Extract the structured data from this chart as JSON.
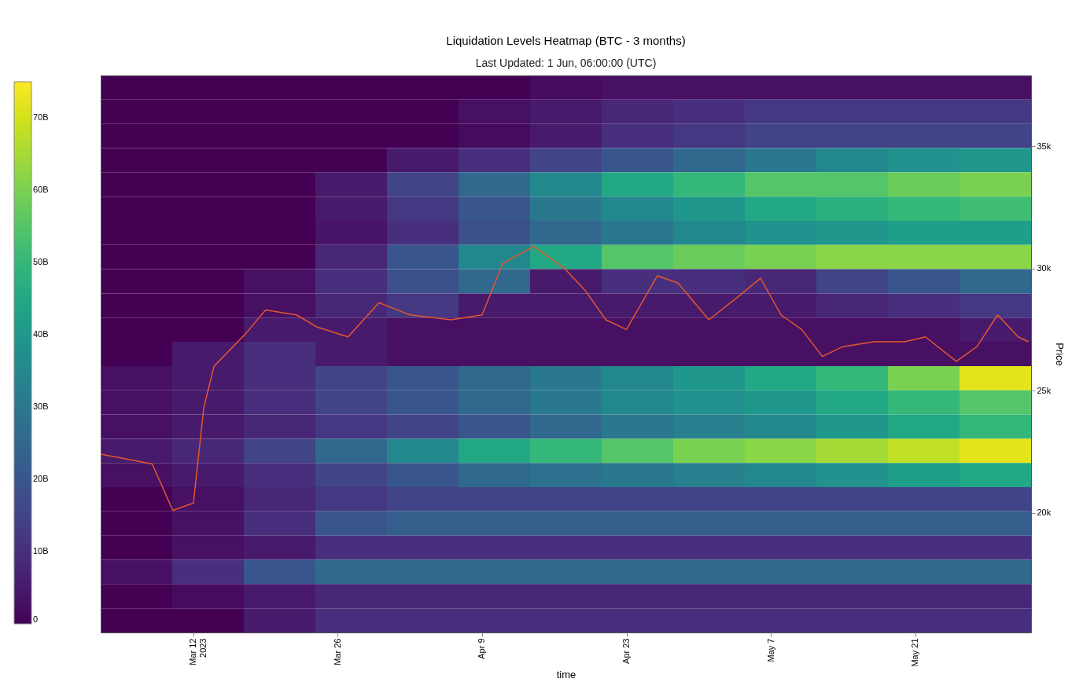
{
  "chart_data": [
    {
      "type": "heatmap",
      "categories": [
        null,
        null,
        null,
        null,
        null,
        null,
        null,
        null,
        null,
        null,
        null,
        null,
        null
      ],
      "y_categories": [
        null,
        null,
        null,
        null,
        null,
        null,
        null,
        null,
        null,
        null,
        null,
        null,
        null,
        null,
        null,
        null,
        null,
        null,
        null,
        null,
        null,
        null,
        null
      ],
      "cells": [
        [
          0,
          0,
          0,
          0,
          0,
          0,
          2,
          3,
          3,
          3,
          3,
          3,
          3
        ],
        [
          0,
          0,
          0,
          0,
          0,
          3,
          5,
          8,
          10,
          12,
          12,
          12,
          12
        ],
        [
          0,
          0,
          0,
          0,
          0,
          2,
          5,
          10,
          12,
          15,
          15,
          15,
          15
        ],
        [
          0,
          0,
          0,
          0,
          5,
          10,
          15,
          20,
          25,
          30,
          35,
          38,
          40
        ],
        [
          0,
          0,
          0,
          5,
          15,
          25,
          35,
          45,
          50,
          55,
          55,
          58,
          60
        ],
        [
          0,
          0,
          0,
          5,
          12,
          20,
          30,
          35,
          40,
          45,
          48,
          50,
          52
        ],
        [
          0,
          0,
          0,
          4,
          10,
          18,
          25,
          30,
          35,
          38,
          40,
          42,
          42
        ],
        [
          0,
          0,
          0,
          8,
          20,
          35,
          45,
          55,
          58,
          60,
          62,
          62,
          62
        ],
        [
          0,
          0,
          3,
          10,
          18,
          25,
          5,
          10,
          10,
          8,
          15,
          20,
          25
        ],
        [
          0,
          0,
          3,
          8,
          12,
          5,
          5,
          5,
          5,
          5,
          8,
          10,
          12
        ],
        [
          0,
          0,
          5,
          5,
          3,
          3,
          3,
          3,
          3,
          3,
          3,
          3,
          5
        ],
        [
          0,
          5,
          10,
          5,
          3,
          3,
          3,
          3,
          3,
          3,
          3,
          3,
          3
        ],
        [
          3,
          5,
          10,
          15,
          20,
          25,
          30,
          35,
          40,
          45,
          50,
          60,
          72
        ],
        [
          3,
          5,
          10,
          15,
          20,
          25,
          30,
          35,
          38,
          40,
          45,
          50,
          55
        ],
        [
          3,
          5,
          8,
          12,
          15,
          20,
          25,
          30,
          32,
          35,
          40,
          45,
          50
        ],
        [
          5,
          8,
          15,
          25,
          35,
          45,
          50,
          55,
          60,
          62,
          65,
          68,
          72
        ],
        [
          3,
          5,
          10,
          15,
          20,
          25,
          28,
          30,
          32,
          35,
          38,
          42,
          45
        ],
        [
          0,
          3,
          8,
          12,
          15,
          15,
          15,
          15,
          15,
          15,
          15,
          15,
          15
        ],
        [
          0,
          3,
          10,
          20,
          22,
          22,
          22,
          22,
          22,
          22,
          22,
          22,
          22
        ],
        [
          0,
          3,
          5,
          10,
          10,
          10,
          10,
          10,
          10,
          10,
          10,
          10,
          10
        ],
        [
          3,
          10,
          20,
          25,
          25,
          25,
          25,
          25,
          25,
          25,
          25,
          25,
          25
        ],
        [
          0,
          2,
          5,
          8,
          8,
          8,
          8,
          8,
          8,
          8,
          8,
          8,
          8
        ],
        [
          0,
          0,
          5,
          10,
          10,
          10,
          10,
          10,
          10,
          10,
          10,
          10,
          10
        ]
      ],
      "clim": [
        0,
        75
      ],
      "cticks": [
        0,
        {
          "value": 10,
          "label": "10B"
        },
        {
          "value": 20,
          "label": "20B"
        },
        {
          "value": 30,
          "label": "30B"
        },
        {
          "value": 40,
          "label": "40B"
        },
        {
          "value": 50,
          "label": "50B"
        },
        {
          "value": 60,
          "label": "60B"
        },
        {
          "value": 70,
          "label": "70B"
        }
      ]
    },
    {
      "type": "line",
      "title": "Liquidation Levels Heatmap (BTC - 3 months)",
      "subtitle": "Last Updated: 1 Jun, 06:00:00 (UTC)",
      "xlabel": "time",
      "ylabel": "Price",
      "xlim": [
        "2023-03-03",
        "2023-06-01T06:00"
      ],
      "xticks": [
        {
          "value": "2023-03-12",
          "label": "Mar 12\n2023"
        },
        {
          "value": "2023-03-26",
          "label": "Mar 26"
        },
        {
          "value": "2023-04-09",
          "label": "Apr 9"
        },
        {
          "value": "2023-04-23",
          "label": "Apr 23"
        },
        {
          "value": "2023-05-07",
          "label": "May 7"
        },
        {
          "value": "2023-05-21",
          "label": "May 21"
        }
      ],
      "ylim": [
        15100,
        37900
      ],
      "yticks": [
        {
          "value": 20000,
          "label": "20k"
        },
        {
          "value": 25000,
          "label": "25k"
        },
        {
          "value": 30000,
          "label": "30k"
        },
        {
          "value": 35000,
          "label": "35k"
        }
      ],
      "series": [
        {
          "color": "#e4572e",
          "x": [
            "2023-03-03",
            "2023-03-08",
            "2023-03-10",
            "2023-03-12",
            "2023-03-13",
            "2023-03-14",
            "2023-03-17",
            "2023-03-19",
            "2023-03-22",
            "2023-03-24",
            "2023-03-27",
            "2023-03-30",
            "2023-04-02",
            "2023-04-06",
            "2023-04-09",
            "2023-04-11",
            "2023-04-14",
            "2023-04-17",
            "2023-04-19",
            "2023-04-21",
            "2023-04-23",
            "2023-04-26",
            "2023-04-28",
            "2023-05-01",
            "2023-05-04",
            "2023-05-06",
            "2023-05-08",
            "2023-05-10",
            "2023-05-12",
            "2023-05-14",
            "2023-05-17",
            "2023-05-20",
            "2023-05-22",
            "2023-05-25",
            "2023-05-27",
            "2023-05-29",
            "2023-05-31",
            "2023-06-01"
          ],
          "values": [
            22400,
            22000,
            20100,
            20400,
            24300,
            26000,
            27300,
            28300,
            28100,
            27600,
            27200,
            28600,
            28100,
            27900,
            28100,
            30200,
            30900,
            30000,
            29100,
            27900,
            27500,
            29700,
            29400,
            27900,
            28900,
            29600,
            28100,
            27500,
            26400,
            26800,
            27000,
            27000,
            27200,
            26200,
            26800,
            28100,
            27200,
            27000
          ]
        }
      ]
    }
  ]
}
